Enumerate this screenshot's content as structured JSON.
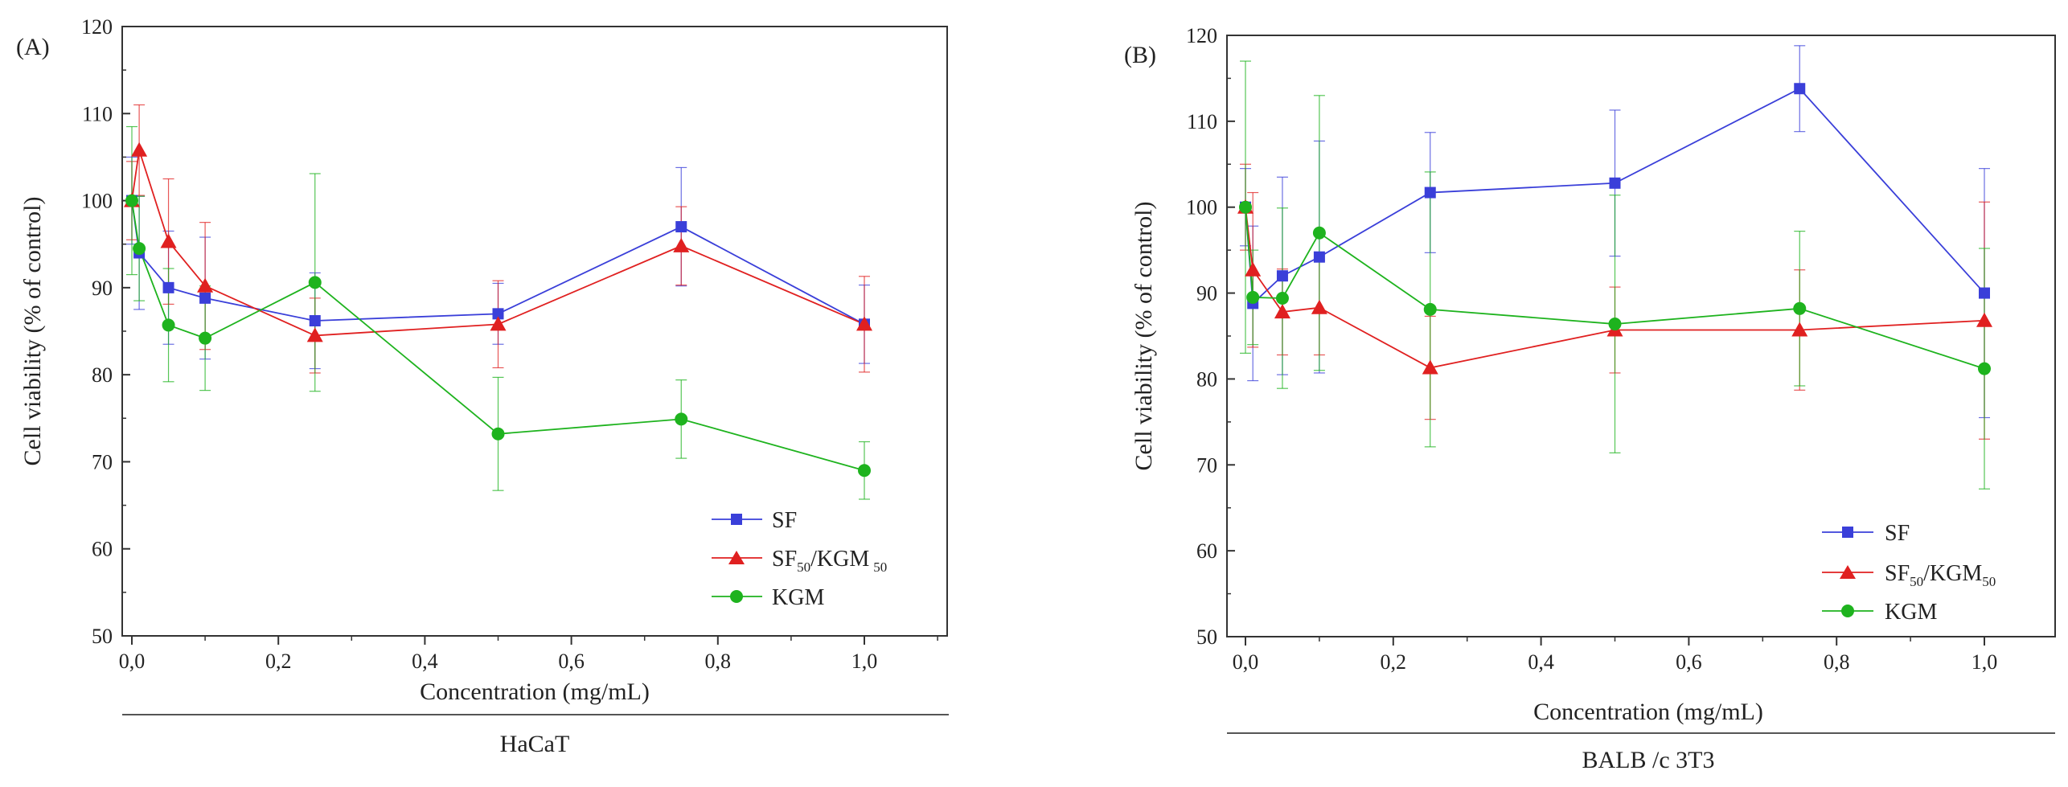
{
  "legend_text": {
    "sf": "SF",
    "sfkgm_main": "SF",
    "sub1": "50",
    "sfkgm_mid": "/KGM",
    "sub2": "50",
    "kgm": "KGM"
  },
  "chart_data": [
    {
      "panel_label": "(A)",
      "type": "line",
      "xlabel": "Concentration (mg/mL)",
      "ylabel": "Cell viability (% of control)",
      "footer": "HaCaT",
      "xlim": [
        -0.02,
        1.1
      ],
      "ylim": [
        50,
        120
      ],
      "xticks": [
        0.0,
        0.2,
        0.4,
        0.6,
        0.8,
        1.0
      ],
      "xtick_labels": [
        "0,0",
        "0,2",
        "0,4",
        "0,6",
        "0,8",
        "1,0"
      ],
      "yticks": [
        50,
        60,
        70,
        80,
        90,
        100,
        110,
        120
      ],
      "ytick_labels": [
        "50",
        "60",
        "70",
        "80",
        "90",
        "100",
        "110",
        "120"
      ],
      "legend_position": "bottom-right",
      "series": [
        {
          "name": "SF",
          "marker": "square",
          "color": "#3a3fd9",
          "x": [
            0,
            0.01,
            0.05,
            0.1,
            0.25,
            0.5,
            0.75,
            1.0
          ],
          "y": [
            100,
            94,
            90,
            88.8,
            86.2,
            87,
            97,
            85.8
          ],
          "err": [
            5,
            6.5,
            6.5,
            7,
            5.5,
            3.5,
            6.8,
            4.5
          ]
        },
        {
          "name": "SF50/KGM50",
          "marker": "triangle",
          "color": "#e02020",
          "x": [
            0,
            0.01,
            0.05,
            0.1,
            0.25,
            0.5,
            0.75,
            1.0
          ],
          "y": [
            100,
            105.8,
            95.3,
            90.2,
            84.5,
            85.8,
            94.8,
            85.8
          ],
          "err": [
            4.5,
            5.2,
            7.2,
            7.3,
            4.3,
            5,
            4.5,
            5.5
          ]
        },
        {
          "name": "KGM",
          "marker": "circle",
          "color": "#1eb31e",
          "x": [
            0,
            0.01,
            0.05,
            0.1,
            0.25,
            0.5,
            0.75,
            1.0
          ],
          "y": [
            100,
            94.5,
            85.7,
            84.2,
            90.6,
            73.2,
            74.9,
            69
          ],
          "err": [
            8.5,
            6,
            6.5,
            6,
            12.5,
            6.5,
            4.5,
            3.3
          ]
        }
      ]
    },
    {
      "panel_label": "(B)",
      "type": "line",
      "xlabel": "Concentration (mg/mL)",
      "ylabel": "Cell viability (% of control)",
      "footer": "BALB /c 3T3",
      "xlim": [
        -0.02,
        1.1
      ],
      "ylim": [
        50,
        120
      ],
      "xticks": [
        0.0,
        0.2,
        0.4,
        0.6,
        0.8,
        1.0
      ],
      "xtick_labels": [
        "0,0",
        "0,2",
        "0,4",
        "0,6",
        "0,8",
        "1,0"
      ],
      "yticks": [
        50,
        60,
        70,
        80,
        90,
        100,
        110,
        120
      ],
      "ytick_labels": [
        "50",
        "60",
        "70",
        "80",
        "90",
        "100",
        "110",
        "120"
      ],
      "legend_position": "bottom-right",
      "series": [
        {
          "name": "SF",
          "marker": "square",
          "color": "#3a3fd9",
          "x": [
            0,
            0.01,
            0.05,
            0.1,
            0.25,
            0.5,
            0.75,
            1.0
          ],
          "y": [
            100,
            88.8,
            92,
            94.2,
            101.7,
            102.8,
            113.8,
            90
          ],
          "err": [
            4.5,
            9,
            11.5,
            13.5,
            7,
            8.5,
            5,
            14.5
          ]
        },
        {
          "name": "SF50/KGM50",
          "marker": "triangle",
          "color": "#e02020",
          "x": [
            0,
            0.01,
            0.05,
            0.1,
            0.25,
            0.5,
            0.75,
            1.0
          ],
          "y": [
            100,
            92.7,
            87.8,
            88.3,
            81.3,
            85.7,
            85.7,
            86.8
          ],
          "err": [
            5,
            9,
            5,
            5.5,
            6,
            5,
            7,
            13.8
          ]
        },
        {
          "name": "KGM",
          "marker": "circle",
          "color": "#1eb31e",
          "x": [
            0,
            0.01,
            0.05,
            0.1,
            0.25,
            0.5,
            0.75,
            1.0
          ],
          "y": [
            100,
            89.5,
            89.4,
            97,
            88.1,
            86.4,
            88.2,
            81.2
          ],
          "err": [
            17,
            5.5,
            10.5,
            16,
            16,
            15,
            9,
            14
          ]
        }
      ]
    }
  ]
}
